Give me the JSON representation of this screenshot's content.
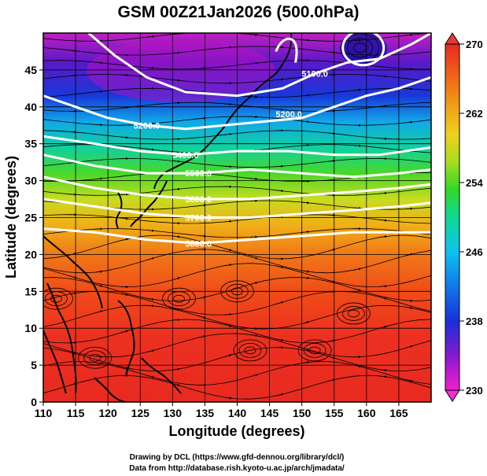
{
  "title": "GSM 00Z21Jan2026 (500.0hPa)",
  "xlabel": "Longitude (degrees)",
  "ylabel": "Latitude  (degrees)",
  "footer": {
    "line1": "Drawing by DCL (https://www.gfd-dennou.org/library/dcl/)",
    "line2": "Data from http://database.rish.kyoto-u.ac.jp/arch/jmadata/"
  },
  "colorbar": {
    "min": 230,
    "max": 270,
    "labels": [
      "230",
      "238",
      "246",
      "254",
      "262",
      "270"
    ],
    "colors": [
      "#f020c8",
      "#7010d0",
      "#1030d8",
      "#10a0f0",
      "#10d8a0",
      "#40d820",
      "#e0e020",
      "#f0a010",
      "#f06010",
      "#e82020"
    ]
  },
  "chart_data": {
    "type": "heatmap",
    "variable": "temperature (K) with geopotential height contours and wind streamlines",
    "title": "GSM 00Z21Jan2026 (500.0hPa)",
    "xlabel": "Longitude (degrees)",
    "ylabel": "Latitude  (degrees)",
    "xlim": [
      110,
      170
    ],
    "ylim": [
      0,
      50
    ],
    "xticks": [
      110,
      115,
      120,
      125,
      130,
      135,
      140,
      145,
      150,
      155,
      160,
      165
    ],
    "yticks": [
      0,
      5,
      10,
      15,
      20,
      25,
      30,
      35,
      40,
      45
    ],
    "grid": true,
    "colorbar_range": [
      230,
      270
    ],
    "temperature_by_latitude": [
      {
        "lat": 0,
        "value": 268
      },
      {
        "lat": 10,
        "value": 268
      },
      {
        "lat": 20,
        "value": 266
      },
      {
        "lat": 25,
        "value": 264
      },
      {
        "lat": 30,
        "value": 258
      },
      {
        "lat": 35,
        "value": 251
      },
      {
        "lat": 40,
        "value": 244
      },
      {
        "lat": 45,
        "value": 238
      },
      {
        "lat": 50,
        "value": 233
      }
    ],
    "contours": [
      {
        "label": "5100.0",
        "points": [
          [
            117,
            50
          ],
          [
            121,
            47
          ],
          [
            126,
            44
          ],
          [
            132,
            42
          ],
          [
            140,
            41.5
          ],
          [
            147,
            42.5
          ],
          [
            152,
            44.5
          ],
          [
            157,
            46
          ],
          [
            162,
            46.5
          ],
          [
            167,
            48.5
          ],
          [
            170,
            50
          ]
        ]
      },
      {
        "label": "5200.0",
        "points": [
          [
            110,
            41.5
          ],
          [
            115,
            40
          ],
          [
            120,
            38.5
          ],
          [
            126,
            37.5
          ],
          [
            132,
            37
          ],
          [
            138,
            37.5
          ],
          [
            144,
            38
          ],
          [
            150,
            38.5
          ],
          [
            155,
            40
          ],
          [
            160,
            41.5
          ],
          [
            165,
            42.5
          ],
          [
            170,
            44
          ]
        ]
      },
      {
        "label": "5400.0",
        "points": [
          [
            110,
            36
          ],
          [
            118,
            35
          ],
          [
            125,
            34
          ],
          [
            132,
            33.5
          ],
          [
            140,
            34
          ],
          [
            148,
            34
          ],
          [
            155,
            33.5
          ],
          [
            162,
            33.5
          ],
          [
            170,
            34.5
          ]
        ]
      },
      {
        "label": "5500.0",
        "points": [
          [
            110,
            33.5
          ],
          [
            118,
            32
          ],
          [
            126,
            31
          ],
          [
            134,
            31
          ],
          [
            142,
            31.5
          ],
          [
            150,
            31
          ],
          [
            158,
            30.5
          ],
          [
            165,
            31
          ],
          [
            170,
            31.5
          ]
        ]
      },
      {
        "label": "5600.0",
        "points": [
          [
            110,
            30.5
          ],
          [
            118,
            29
          ],
          [
            126,
            28
          ],
          [
            134,
            27.5
          ],
          [
            142,
            27.5
          ],
          [
            150,
            28
          ],
          [
            158,
            28.5
          ],
          [
            165,
            29
          ],
          [
            170,
            29.5
          ]
        ]
      },
      {
        "label": "5700.0",
        "points": [
          [
            110,
            27.5
          ],
          [
            118,
            26.5
          ],
          [
            126,
            25.5
          ],
          [
            134,
            25
          ],
          [
            142,
            25
          ],
          [
            150,
            25.5
          ],
          [
            158,
            26
          ],
          [
            165,
            26.5
          ],
          [
            170,
            27
          ]
        ]
      },
      {
        "label": "5800.0",
        "points": [
          [
            110,
            23.5
          ],
          [
            118,
            23
          ],
          [
            126,
            22
          ],
          [
            134,
            21.5
          ],
          [
            142,
            22
          ],
          [
            150,
            22.5
          ],
          [
            158,
            23
          ],
          [
            165,
            23
          ],
          [
            170,
            23
          ]
        ]
      }
    ],
    "contour_label_text": [
      "5100.0",
      "5200.0",
      "5200.0",
      "5400.0",
      "5500.0",
      "5600.0",
      "5700.0",
      "5800.0"
    ]
  }
}
